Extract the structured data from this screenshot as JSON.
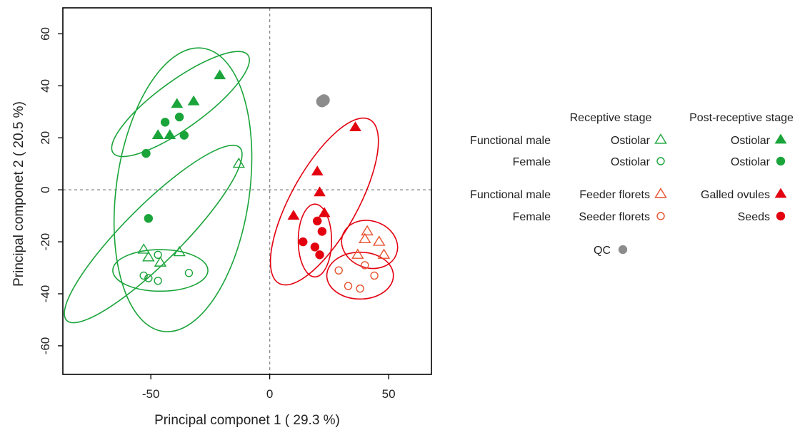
{
  "chart_data": {
    "type": "scatter",
    "title": "",
    "xlabel": "Principal componet 1 ( 29.3 %)",
    "ylabel": "Principal componet 2 ( 20.5 %)",
    "xlim": [
      -87,
      68
    ],
    "ylim": [
      -71,
      70
    ],
    "x_ticks": [
      -50,
      0,
      50
    ],
    "y_ticks": [
      -60,
      -40,
      -20,
      0,
      20,
      40,
      60
    ],
    "x_tick_labels": [
      "-50",
      "0",
      "50"
    ],
    "y_tick_labels": [
      "-60",
      "-40",
      "-20",
      "0",
      "20",
      "40",
      "60"
    ],
    "reference_lines": {
      "x": 0,
      "y": 0
    },
    "grid": false,
    "legend_position": "right",
    "colors": {
      "green": "#1aa43a",
      "red": "#e3000f",
      "orange": "#e8512d",
      "qc": "#8c8c8c"
    },
    "series": [
      {
        "marker": "triangle-open",
        "color": "#1aa43a",
        "points": [
          [
            -13,
            10
          ],
          [
            -53,
            -23
          ],
          [
            -51,
            -26
          ],
          [
            -46,
            -28
          ],
          [
            -38,
            -24
          ]
        ]
      },
      {
        "marker": "circle-open",
        "color": "#1aa43a",
        "points": [
          [
            -53,
            -33
          ],
          [
            -51,
            -34
          ],
          [
            -47,
            -25
          ],
          [
            -47,
            -35
          ],
          [
            -34,
            -32
          ]
        ]
      },
      {
        "marker": "triangle-filled",
        "color": "#1aa43a",
        "points": [
          [
            -21,
            44
          ],
          [
            -39,
            33
          ],
          [
            -32,
            34
          ],
          [
            -47,
            21
          ],
          [
            -42,
            21
          ]
        ]
      },
      {
        "marker": "circle-filled",
        "color": "#1aa43a",
        "points": [
          [
            -44,
            26
          ],
          [
            -38,
            28
          ],
          [
            -36,
            21
          ],
          [
            -52,
            14
          ],
          [
            -51,
            -11
          ]
        ]
      },
      {
        "marker": "triangle-open",
        "color": "#e8512d",
        "points": [
          [
            41,
            -16
          ],
          [
            40,
            -19
          ],
          [
            46,
            -20
          ],
          [
            37,
            -25
          ],
          [
            48,
            -25
          ]
        ]
      },
      {
        "marker": "circle-open",
        "color": "#e8512d",
        "points": [
          [
            29,
            -31
          ],
          [
            33,
            -37
          ],
          [
            38,
            -38
          ],
          [
            40,
            -29
          ],
          [
            44,
            -33
          ]
        ]
      },
      {
        "marker": "triangle-filled",
        "color": "#e3000f",
        "points": [
          [
            36,
            24
          ],
          [
            20,
            7
          ],
          [
            21,
            -1
          ],
          [
            10,
            -10
          ],
          [
            23,
            -9
          ]
        ]
      },
      {
        "marker": "circle-filled",
        "color": "#e3000f",
        "points": [
          [
            20,
            -12
          ],
          [
            22,
            -16
          ],
          [
            14,
            -20
          ],
          [
            19,
            -22
          ],
          [
            21,
            -25
          ]
        ]
      },
      {
        "marker": "circle-filled-large",
        "color": "#8c8c8c",
        "points": [
          [
            22,
            34
          ],
          [
            22.8,
            34.5
          ]
        ]
      }
    ],
    "ellipses": [
      {
        "color": "#1aa43a",
        "cx": -36.5,
        "cy": 0,
        "rx": 28,
        "ry": 55,
        "rotate": 8
      },
      {
        "color": "#1aa43a",
        "cx": -37.5,
        "cy": 33,
        "rx": 10,
        "ry": 32,
        "rotate": 54
      },
      {
        "color": "#1aa43a",
        "cx": -49,
        "cy": -17,
        "rx": 12,
        "ry": 47,
        "rotate": 45
      },
      {
        "color": "#1aa43a",
        "cx": -46,
        "cy": -31,
        "rx": 20,
        "ry": 8,
        "rotate": 0
      },
      {
        "color": "#e3000f",
        "cx": 23,
        "cy": -4.5,
        "rx": 14,
        "ry": 36,
        "rotate": 29
      },
      {
        "color": "#e3000f",
        "cx": 19,
        "cy": -19.5,
        "rx": 7,
        "ry": 14,
        "rotate": 0
      },
      {
        "color": "#e3000f",
        "cx": 42,
        "cy": -21,
        "rx": 12,
        "ry": 9,
        "rotate": 20
      },
      {
        "color": "#e3000f",
        "cx": 38,
        "cy": -33,
        "rx": 14,
        "ry": 9,
        "rotate": 0
      }
    ],
    "legend": {
      "header_receptive": "Receptive stage",
      "header_post_receptive": "Post-receptive stage",
      "rows": [
        {
          "group": "Functional male",
          "receptive": "Ostiolar",
          "receptive_marker": "triangle-open",
          "receptive_color": "#1aa43a",
          "post": "Ostiolar",
          "post_marker": "triangle-filled",
          "post_color": "#1aa43a"
        },
        {
          "group": "Female",
          "receptive": "Ostiolar",
          "receptive_marker": "circle-open",
          "receptive_color": "#1aa43a",
          "post": "Ostiolar",
          "post_marker": "circle-filled",
          "post_color": "#1aa43a"
        },
        {
          "group": "Functional male",
          "receptive": "Feeder florets",
          "receptive_marker": "triangle-open",
          "receptive_color": "#e8512d",
          "post": "Galled ovules",
          "post_marker": "triangle-filled",
          "post_color": "#e3000f"
        },
        {
          "group": "Female",
          "receptive": "Seeder florets",
          "receptive_marker": "circle-open",
          "receptive_color": "#e8512d",
          "post": "Seeds",
          "post_marker": "circle-filled",
          "post_color": "#e3000f"
        }
      ],
      "qc_label": "QC",
      "qc_color": "#8c8c8c"
    }
  }
}
